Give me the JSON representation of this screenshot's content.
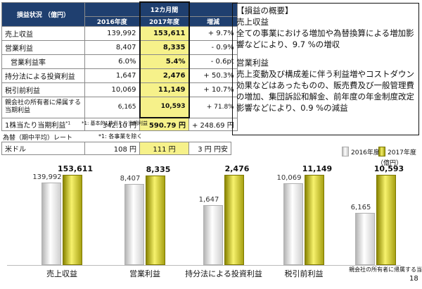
{
  "table": {
    "header_label": "損益状況 （億円）",
    "period_label": "12カ月間",
    "col_prev": "2016年度",
    "col_cur": "2017年度",
    "col_change": "増減",
    "rows": [
      {
        "label": "売上収益",
        "prev": "139,992",
        "cur": "153,611",
        "change": "+ 9.7%"
      },
      {
        "label": "営業利益",
        "prev": "8,407",
        "cur": "8,335",
        "change": "- 0.9%"
      },
      {
        "label": "営業利益率",
        "prev": "6.0%",
        "cur": "5.4%",
        "change": "- 0.6pt"
      },
      {
        "label": "持分法による投資利益",
        "prev": "1,647",
        "cur": "2,476",
        "change": "+ 50.3%"
      },
      {
        "label": "税引前利益",
        "prev": "10,069",
        "cur": "11,149",
        "change": "+ 10.7%"
      },
      {
        "label": "親会社の所有者に帰属する当期利益",
        "prev": "6,165",
        "cur": "10,593",
        "change": "+ 71.8%"
      }
    ],
    "eps": {
      "label": "1株当たり当期利益",
      "marker": "*1",
      "prev": "342.10 円",
      "cur": "590.79 円",
      "change": "+ 248.69 円"
    },
    "note": "*1: 基本的1株当たり当期利益",
    "rate_header": "為替（期中平均）レート",
    "rate_note": "*1: 各事業を除く",
    "rate_row": {
      "label": "米ドル",
      "prev": "108 円",
      "cur": "111 円",
      "change": "3 円 円安"
    }
  },
  "summary": {
    "title": "【損益の概要】",
    "h1": "売上収益",
    "p1": "全ての事業における増加や為替換算による増加影響などにより、9.7 %の増収",
    "h2": "営業利益",
    "p2": "売上変動及び構成差に伴う利益増やコストダウン効果などはあったものの、販売費及び一般管理費の増加、集団訴訟和解金、前年度の年金制度改定影響などにより、0.9 %の減益"
  },
  "legend": {
    "prev": "2016年度",
    "cur": "2017年度",
    "unit": "（億円）"
  },
  "colors": {
    "header_bg": "#1f3f6f",
    "highlight": "#f6f18a",
    "bar_current": "#e8e24a",
    "bar_previous": "#d8d8d8"
  },
  "chart_data": {
    "type": "bar",
    "categories": [
      "売上収益",
      "営業利益",
      "持分法による投資利益",
      "税引前利益",
      "親会社の所有者に帰属する当期利益"
    ],
    "series": [
      {
        "name": "2016年度",
        "values": [
          139992,
          8407,
          1647,
          10069,
          6165
        ]
      },
      {
        "name": "2017年度",
        "values": [
          153611,
          8335,
          2476,
          11149,
          10593
        ]
      }
    ],
    "labels": [
      [
        "139,992",
        "8,407",
        "1,647",
        "10,069",
        "6,165"
      ],
      [
        "153,611",
        "8,335",
        "2,476",
        "11,149",
        "10,593"
      ]
    ],
    "ylabel": "（億円）",
    "legend_position": "top-right"
  },
  "page_number": "18"
}
